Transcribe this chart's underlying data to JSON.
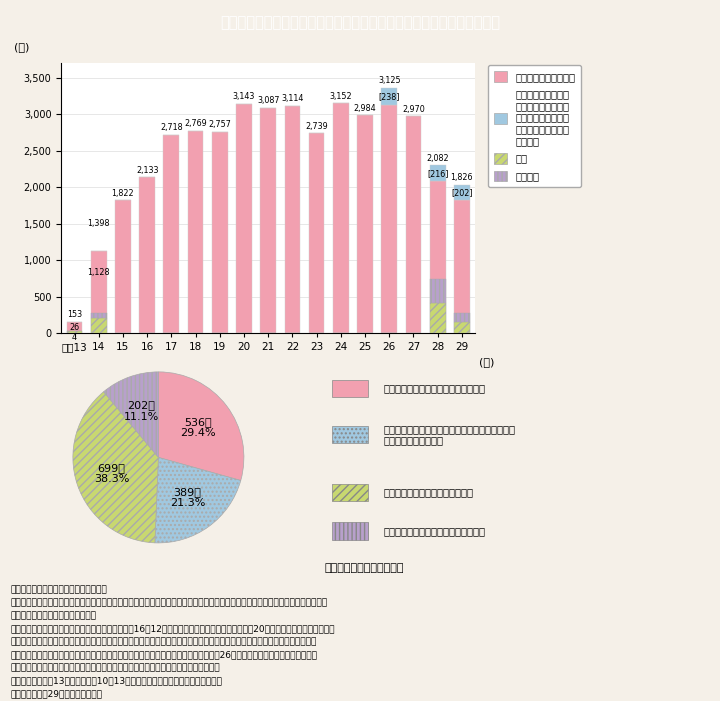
{
  "title": "Ｉ－７－６図　配偶者暴力等に関する保護命令事件の処理状況等の推移",
  "bg_color": "#f5f0e8",
  "header_color": "#5ab8c8",
  "bar_years": [
    "平成13",
    "14",
    "15",
    "16",
    "17",
    "18",
    "19",
    "20",
    "21",
    "22",
    "23",
    "24",
    "25",
    "26",
    "27",
    "28",
    "29"
  ],
  "ninka": [
    153,
    1128,
    1822,
    2133,
    2718,
    2769,
    2757,
    3143,
    3087,
    3114,
    2739,
    3152,
    2984,
    3125,
    2970,
    2082,
    1826
  ],
  "kyakka": [
    26,
    206,
    0,
    0,
    0,
    0,
    0,
    0,
    0,
    0,
    0,
    0,
    0,
    0,
    0,
    406,
    144
  ],
  "torisage": [
    4,
    64,
    0,
    0,
    0,
    0,
    0,
    0,
    0,
    0,
    0,
    0,
    0,
    0,
    0,
    332,
    135
  ],
  "koizai": [
    0,
    0,
    0,
    0,
    0,
    0,
    0,
    0,
    0,
    0,
    0,
    0,
    0,
    238,
    0,
    216,
    202
  ],
  "color_ninka": "#f2a0b0",
  "color_koizai": "#a0c8e0",
  "color_kyakka": "#c8d870",
  "color_torisage": "#b8a0cc",
  "bar_legend_1": "認容（保護命令発令）",
  "bar_legend_2": "認容のうち，生活の\n本拠を共にする交際\n相手からの暴力の被\n害者からの申立てに\nよるもの",
  "bar_legend_3": "却下",
  "bar_legend_4": "取下げ等",
  "pie_values": [
    536,
    389,
    699,
    202
  ],
  "pie_pcts": [
    "29.4%",
    "21.3%",
    "38.3%",
    "11.1%"
  ],
  "pie_colors": [
    "#f2a0b0",
    "#a0c8e0",
    "#c8d870",
    "#b8a0cc"
  ],
  "pie_hatches": [
    "",
    "....",
    "////",
    "||||"
  ],
  "pie_legend_1": "「被害者に関する保護命令」のみ発令",
  "pie_legend_2": "「子への接近禁止命令」及び「親族等への接近禁\n止命令」が同時に発令",
  "pie_legend_3": "「子への接近禁止命令」のみ発令",
  "pie_legend_4": "「親族等への接近禁止命令」のみ発令",
  "note_line": "（上段：件数，下段：％）",
  "notes": [
    "（備考）１．最高裁判所資料より作成。",
    "　　　　２．「認容」には，一部認容の事案を含む。「却下」には，一部却下一部取下げの事案を含む。「取下げ等」には，移送，",
    "　　　　　　回付等の事案を含む。",
    "　　　　３．配偶者暴力防止法の改正により，平成16年12月に「子への接近禁止命令」制度が，20年１月に「電話等禁止命令」",
    "　　　　　　制度及び「親族等への接近禁止命令」制度がそれぞれ新設された。これらの命令は，被害者への接近禁止命令と同",
    "　　　　　　時に又は被害者への接近禁止命令が発令された後に発令される。さらに，26年１月より，生活の本拠を共にする",
    "　　　　　　交際相手からの暴力及びその被害者についても，法の適用対象となった。",
    "　　　　４．平成13年値は，同年10月13日の配偶者暴力防止法施行以降の件数。",
    "　　　　５．平29年値は，速報値。"
  ]
}
